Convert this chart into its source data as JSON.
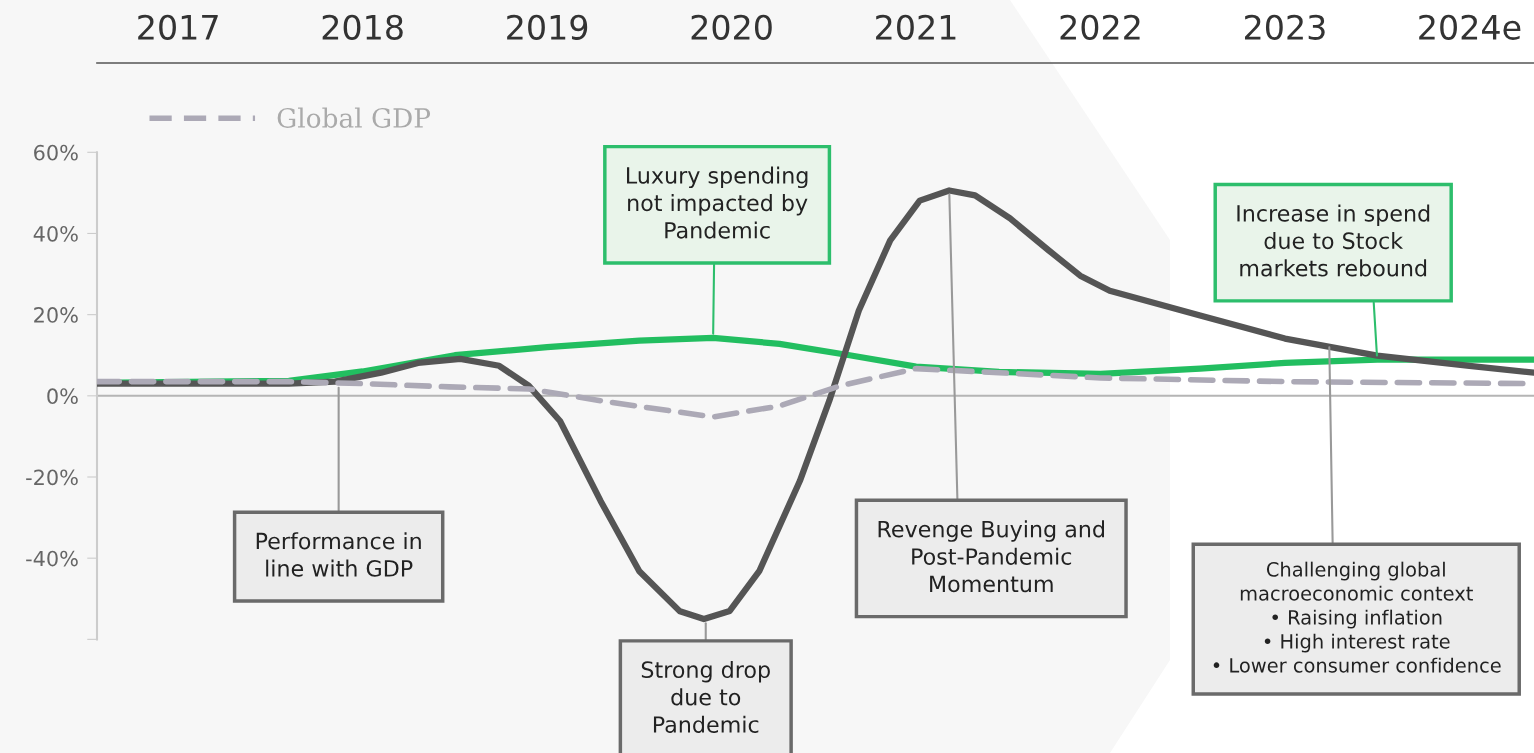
{
  "chart_data": {
    "type": "line",
    "xlim": [
      2016.56,
      2024.35
    ],
    "xticks": [
      2017,
      2018,
      2019,
      2020,
      2021,
      2022,
      2023,
      {
        "value": 2024,
        "label": "2024e"
      }
    ],
    "ylim": [
      -88,
      82
    ],
    "yticks": [
      {
        "value": 60,
        "label": "60%"
      },
      {
        "value": 40,
        "label": "40%"
      },
      {
        "value": 20,
        "label": "20%"
      },
      {
        "value": 0,
        "label": "0%"
      },
      {
        "value": -20,
        "label": "-20%"
      },
      {
        "value": -40,
        "label": "-40%"
      },
      {
        "value": -60,
        "label": null
      }
    ],
    "grid": false,
    "legend": "top left",
    "ref_lines": [
      {
        "axis": "y",
        "value": 0,
        "color": "#b5b5b5"
      }
    ],
    "series": [
      {
        "color": "#22be60",
        "line_style": "solid",
        "x": [
          2016.56,
          2017.6,
          2018,
          2018.5,
          2019,
          2019.5,
          2019.9,
          2020.26,
          2020.64,
          2021,
          2021.45,
          2022,
          2022.54,
          2023,
          2023.5,
          2024.35
        ],
        "values": [
          3.2,
          3.7,
          6,
          10,
          12,
          13.6,
          14.3,
          12.8,
          10,
          7.2,
          5.9,
          5.4,
          6.7,
          8.1,
          8.9,
          8.9
        ]
      },
      {
        "color": "#555555",
        "line_style": "solid",
        "x": [
          2016.56,
          2017.6,
          2017.85,
          2018.1,
          2018.3,
          2018.53,
          2018.74,
          2018.9,
          2019.07,
          2019.29,
          2019.5,
          2019.72,
          2019.85,
          2019.99,
          2020.15,
          2020.37,
          2020.53,
          2020.69,
          2020.86,
          2021.02,
          2021.18,
          2021.32,
          2021.51,
          2021.72,
          2021.89,
          2022.05,
          2022.54,
          2023,
          2023.5,
          2024,
          2024.35
        ],
        "values": [
          3,
          3,
          3.5,
          5.7,
          8.1,
          9.1,
          7.4,
          2.5,
          -6.2,
          -25.9,
          -43.2,
          -53.1,
          -55,
          -53,
          -43.2,
          -21,
          -1.2,
          21,
          38.3,
          48.1,
          50.6,
          49.4,
          43.7,
          35.8,
          29.6,
          25.9,
          19.8,
          14.1,
          9.9,
          7.4,
          5.7
        ]
      },
      {
        "name": "Global GDP",
        "color": "#aca9b6",
        "line_style": "dashed",
        "x": [
          2016.56,
          2017.6,
          2018,
          2018.47,
          2018.9,
          2019.29,
          2019.56,
          2019.9,
          2020.26,
          2020.59,
          2021,
          2021.45,
          2022,
          2023,
          2024.35
        ],
        "values": [
          3.5,
          3.5,
          3,
          2.2,
          1.7,
          -1.2,
          -3,
          -5.2,
          -2.5,
          2.5,
          6.7,
          5.7,
          4.4,
          3.5,
          3
        ]
      }
    ],
    "annotations": [
      {
        "text": "Performance in\nline with GDP",
        "x": 2017.87,
        "y": 3
      },
      {
        "text": "Luxury spending\nnot impacted by\nPandemic",
        "x": 2019.9,
        "y": 14.3
      },
      {
        "text": "Strong drop\ndue to\nPandemic",
        "x": 2019.86,
        "y": -55
      },
      {
        "text": "Revenge Buying and\nPost-Pandemic\nMomentum",
        "x": 2021.18,
        "y": 50.6
      },
      {
        "text": "Increase in spend\ndue to Stock\nmarkets rebound",
        "x": 2023.5,
        "y": 8.9
      },
      {
        "text": "Challenging global\nmacroeconomic context\n• Raising inflation\n• High interest rate\n• Lower consumer confidence",
        "x": 2023.24,
        "y": 13
      }
    ]
  }
}
